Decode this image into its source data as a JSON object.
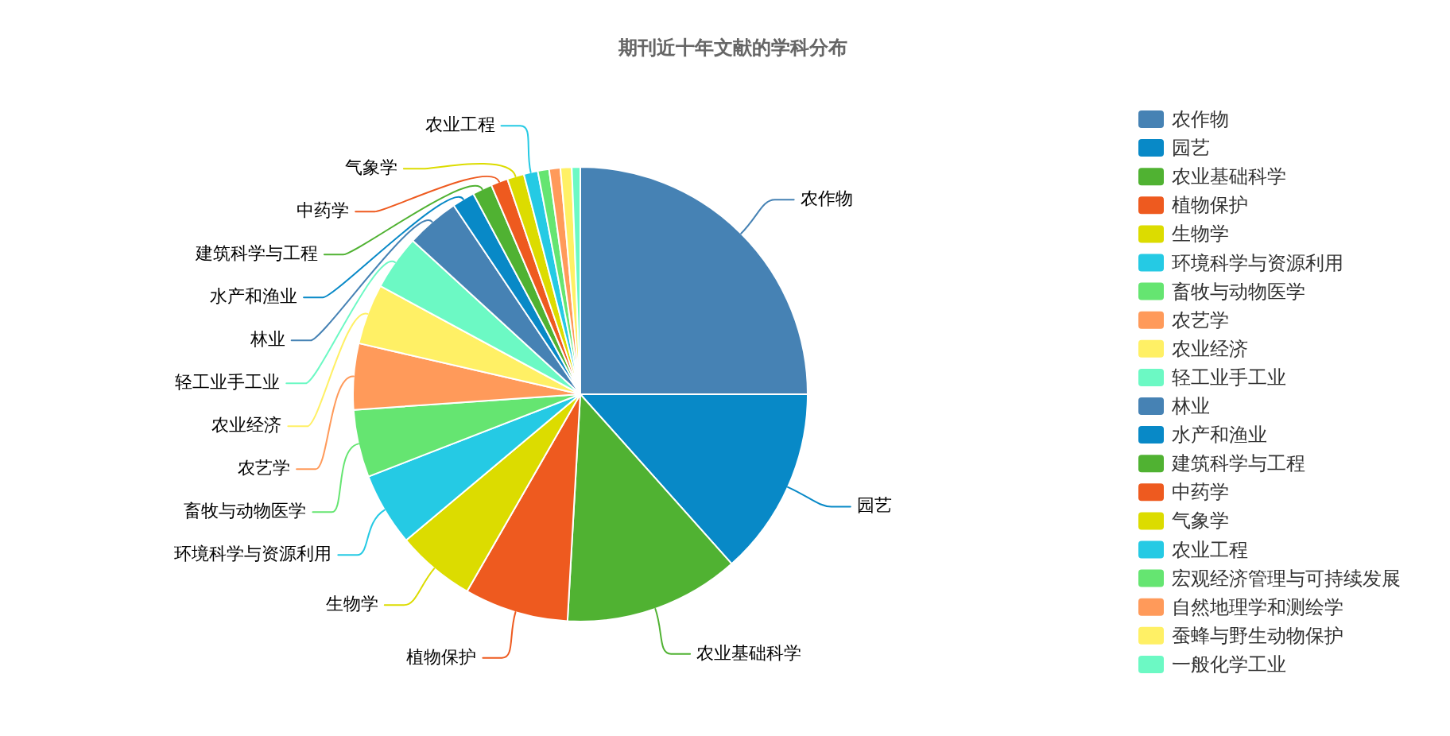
{
  "chart_data": {
    "type": "pie",
    "title": "期刊近十年文献的学科分布",
    "categories": [
      "农作物",
      "园艺",
      "农业基础科学",
      "植物保护",
      "生物学",
      "环境科学与资源利用",
      "畜牧与动物医学",
      "农艺学",
      "农业经济",
      "轻工业手工业",
      "林业",
      "水产和渔业",
      "建筑科学与工程",
      "中药学",
      "气象学",
      "农业工程",
      "宏观经济管理与可持续发展",
      "自然地理学和测绘学",
      "蚕蜂与野生动物保护",
      "一般化学工业"
    ],
    "values": [
      25.0,
      13.4,
      12.5,
      7.4,
      5.6,
      5.2,
      4.8,
      4.7,
      4.3,
      3.9,
      3.8,
      1.6,
      1.4,
      1.2,
      1.2,
      1.0,
      0.8,
      0.8,
      0.8,
      0.6
    ],
    "colors": [
      "#4682b4",
      "#0889c7",
      "#50b232",
      "#ee5a1f",
      "#dcdc00",
      "#25cae4",
      "#65e571",
      "#ff9a5a",
      "#fff065",
      "#6cf9c4",
      "#4682b4",
      "#0889c7",
      "#50b232",
      "#ee5a1f",
      "#dcdc00",
      "#25cae4",
      "#65e571",
      "#ff9a5a",
      "#fff065",
      "#6cf9c4"
    ],
    "legend": "right"
  }
}
